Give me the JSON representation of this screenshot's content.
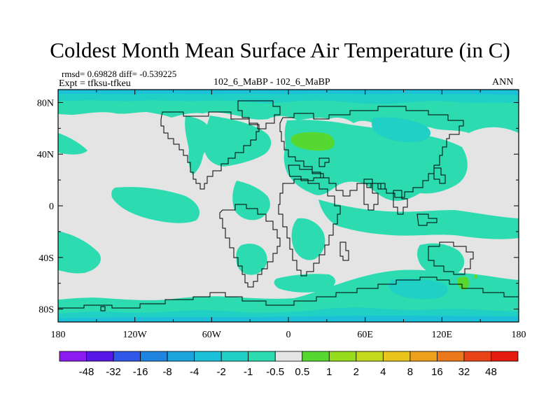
{
  "title": "Coldest Month Mean Surface Air Temperature (in C)",
  "stats": "rmsd= 0.69828  diff= -0.539225",
  "experiment": "Expt = tfksu-tfkeu",
  "center_label": "102_6_MaBP - 102_6_MaBP",
  "season": "ANN",
  "x_ticks": [
    "180",
    "120W",
    "60W",
    "0",
    "60E",
    "120E",
    "180"
  ],
  "y_ticks": [
    "80N",
    "40N",
    "0",
    "40S",
    "80S"
  ],
  "colorbar": {
    "labels": [
      "-48",
      "-32",
      "-16",
      "-8",
      "-4",
      "-2",
      "-1",
      "-0.5",
      "0.5",
      "1",
      "2",
      "4",
      "8",
      "16",
      "32",
      "48"
    ],
    "colors": [
      "#8a1cf0",
      "#5a18e8",
      "#2f58e8",
      "#1e84e0",
      "#1ca4dc",
      "#1cc0d8",
      "#20d0c4",
      "#2cdcb0",
      "#e4e4e4",
      "#56d830",
      "#96dc1c",
      "#c4d81c",
      "#e8c41c",
      "#eca01c",
      "#ec781c",
      "#e84418",
      "#e41c10"
    ]
  },
  "palette": {
    "background_gray": "#e4e4e4",
    "teal": "#2cdcb0",
    "aqua": "#20d0c4",
    "blue": "#1cc0d8",
    "green": "#56d830",
    "coast": "#000000"
  }
}
